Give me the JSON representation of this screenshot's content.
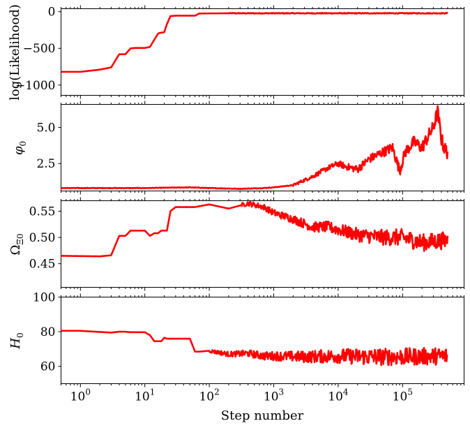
{
  "chart_data": [
    {
      "type": "line",
      "ylabel": "log(Likelihood)",
      "yticks": [
        0,
        -500,
        -1000
      ],
      "yticklabels": [
        "0",
        "−500",
        "−1000"
      ],
      "ylim": [
        -1140,
        40
      ],
      "xscale": "log",
      "xlim": [
        0.5,
        900000
      ],
      "series": [
        {
          "color": "#ff0000",
          "x": [
            0.5,
            1,
            2,
            3,
            4,
            5,
            6,
            7,
            8,
            10,
            12,
            15,
            16,
            17,
            20,
            22,
            25,
            30,
            60,
            70,
            200,
            1000,
            10000,
            100000,
            500000
          ],
          "y": [
            -820,
            -820,
            -790,
            -760,
            -580,
            -580,
            -500,
            -495,
            -495,
            -495,
            -480,
            -340,
            -300,
            -290,
            -280,
            -170,
            -60,
            -55,
            -55,
            -25,
            -22,
            -22,
            -22,
            -22,
            -22
          ]
        }
      ]
    },
    {
      "type": "line",
      "ylabel": "φ0",
      "yticks": [
        5.0,
        2.5
      ],
      "yticklabels": [
        "5.0",
        "2.5"
      ],
      "ylim": [
        0.6,
        6.6
      ],
      "xscale": "log",
      "xlim": [
        0.5,
        900000
      ],
      "series": [
        {
          "color": "#ff0000",
          "x": [
            0.5,
            10,
            50,
            100,
            300,
            700,
            1000,
            2000,
            4000,
            7000,
            10000,
            13000,
            20000,
            30000,
            50000,
            70000,
            90000,
            110000,
            150000,
            200000,
            250000,
            300000,
            350000,
            400000,
            450000,
            500000
          ],
          "y": [
            0.8,
            0.8,
            0.85,
            0.8,
            0.75,
            0.8,
            0.85,
            1.0,
            1.6,
            2.2,
            2.5,
            2.3,
            2.1,
            2.8,
            3.3,
            3.6,
            2.0,
            3.3,
            4.0,
            3.6,
            4.4,
            5.0,
            6.1,
            4.2,
            3.5,
            3.3
          ]
        }
      ]
    },
    {
      "type": "line",
      "ylabel": "Ω_Ξ0",
      "yticks": [
        0.55,
        0.5,
        0.45
      ],
      "yticklabels": [
        "0.55",
        "0.50",
        "0.45"
      ],
      "ylim": [
        0.405,
        0.57
      ],
      "xscale": "log",
      "xlim": [
        0.5,
        900000
      ],
      "series": [
        {
          "color": "#ff0000",
          "x": [
            0.5,
            2,
            3,
            4,
            5,
            6,
            8,
            10,
            12,
            14,
            16,
            18,
            22,
            25,
            30,
            60,
            100,
            200,
            400,
            700,
            1000,
            2000,
            4000,
            7000,
            10000,
            20000,
            50000,
            100000,
            200000,
            500000
          ],
          "y": [
            0.465,
            0.464,
            0.466,
            0.503,
            0.503,
            0.513,
            0.513,
            0.513,
            0.503,
            0.508,
            0.508,
            0.513,
            0.513,
            0.55,
            0.558,
            0.558,
            0.563,
            0.555,
            0.565,
            0.558,
            0.547,
            0.535,
            0.52,
            0.52,
            0.515,
            0.505,
            0.5,
            0.5,
            0.49,
            0.495
          ]
        }
      ]
    },
    {
      "type": "line",
      "xlabel": "Step number",
      "ylabel": "H0",
      "yticks": [
        100,
        80,
        60
      ],
      "yticklabels": [
        "100",
        "80",
        "60"
      ],
      "ylim": [
        50,
        100
      ],
      "xscale": "log",
      "xlim": [
        0.5,
        900000
      ],
      "xticklabels": [
        "10^0",
        "10^1",
        "10^2",
        "10^3",
        "10^4",
        "10^5"
      ],
      "series": [
        {
          "color": "#ff0000",
          "x": [
            0.5,
            1,
            3,
            4,
            5,
            6,
            8,
            10,
            12,
            14,
            16,
            18,
            20,
            22,
            25,
            30,
            40,
            50,
            60,
            70,
            100,
            200,
            400,
            700,
            1000,
            3000,
            10000,
            30000,
            100000,
            500000
          ],
          "y": [
            80.5,
            80.5,
            79.5,
            80,
            80,
            79.7,
            79.7,
            79.7,
            78,
            74.5,
            74.5,
            74.5,
            76.5,
            76,
            76,
            76,
            76,
            76,
            68.5,
            68.5,
            69,
            67,
            67.5,
            66,
            66,
            65.5,
            66,
            65.5,
            65.5,
            66
          ]
        }
      ]
    }
  ]
}
